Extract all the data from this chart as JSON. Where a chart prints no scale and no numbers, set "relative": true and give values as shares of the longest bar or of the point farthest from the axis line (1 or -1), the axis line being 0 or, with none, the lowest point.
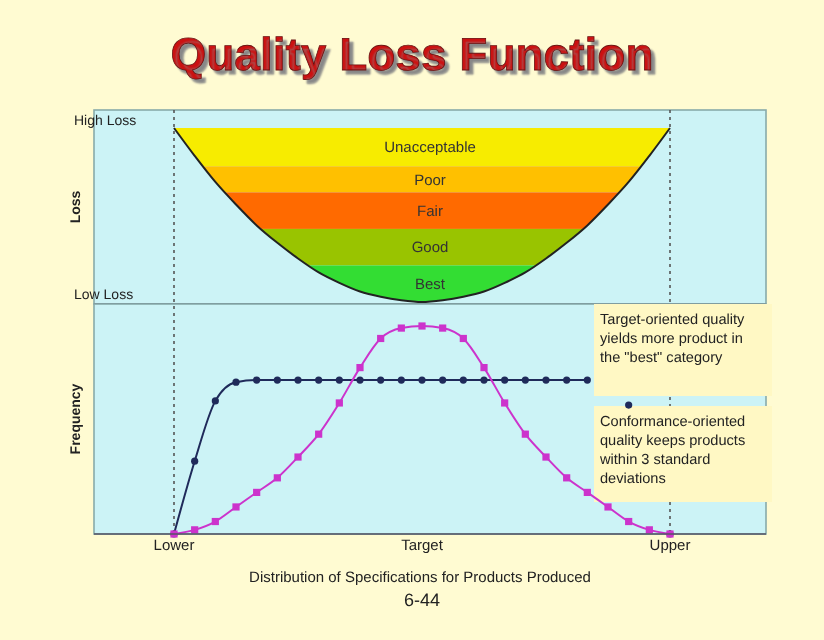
{
  "chart_data": [
    {
      "type": "line",
      "title": "Quality Loss Function",
      "ylabel": "Loss",
      "relative": true,
      "categories": [
        null,
        null,
        null,
        null,
        null,
        null,
        null,
        null,
        null,
        null,
        null,
        null,
        null,
        null,
        null,
        null,
        null,
        null,
        null,
        null,
        null,
        null,
        null,
        null,
        null
      ],
      "series": [
        {
          "color": "#222222",
          "marker": "none",
          "values": [
            1,
            0.84,
            0.69,
            0.56,
            0.44,
            0.34,
            0.25,
            0.17,
            0.11,
            0.06,
            0.03,
            0.01,
            0,
            0.01,
            0.03,
            0.06,
            0.11,
            0.17,
            0.25,
            0.34,
            0.44,
            0.56,
            0.69,
            0.84,
            1
          ]
        }
      ],
      "bands": [
        {
          "axis": "y",
          "from": 0.78,
          "to": 1,
          "label": "Unacceptable",
          "color": "#f7ec00"
        },
        {
          "axis": "y",
          "from": 0.63,
          "to": 0.78,
          "label": "Poor",
          "color": "#ffc000"
        },
        {
          "axis": "y",
          "from": 0.42,
          "to": 0.63,
          "label": "Fair",
          "color": "#ff6a00"
        },
        {
          "axis": "y",
          "from": 0.21,
          "to": 0.42,
          "label": "Good",
          "color": "#99c400"
        },
        {
          "axis": "y",
          "from": 0,
          "to": 0.21,
          "label": "Best",
          "color": "#33dd33"
        }
      ],
      "annotations": [
        "High Loss",
        "Low Loss"
      ]
    },
    {
      "type": "line",
      "ylabel": "Frequency",
      "xlabel": "Distribution of Specifications for Products Produced",
      "relative": true,
      "categories": [
        "Lower",
        null,
        null,
        null,
        null,
        null,
        null,
        null,
        null,
        null,
        null,
        null,
        "Target",
        null,
        null,
        null,
        null,
        null,
        null,
        null,
        null,
        null,
        null,
        null,
        "Upper"
      ],
      "series": [
        {
          "color": "#1f2a5a",
          "marker": "circle",
          "values": [
            0,
            0.35,
            0.64,
            0.73,
            0.74,
            0.74,
            0.74,
            0.74,
            0.74,
            0.74,
            0.74,
            0.74,
            0.74,
            0.74,
            0.74,
            0.74,
            0.74,
            0.74,
            0.74,
            0.74,
            0.74,
            null,
            0.62,
            null,
            0
          ]
        },
        {
          "color": "#cc33cc",
          "marker": "square",
          "values": [
            0,
            0.02,
            0.06,
            0.13,
            0.2,
            0.27,
            0.37,
            0.48,
            0.63,
            0.8,
            0.94,
            0.99,
            1,
            0.99,
            0.94,
            0.8,
            0.63,
            0.48,
            0.37,
            0.27,
            0.2,
            0.13,
            0.06,
            0.02,
            0
          ]
        }
      ],
      "ref_lines": [
        {
          "axis": "x",
          "value": "Lower",
          "line_style": "dotted",
          "color": "#555555"
        },
        {
          "axis": "x",
          "value": "Upper",
          "line_style": "dotted",
          "color": "#555555"
        }
      ],
      "annotations": [
        "Target-oriented quality yields more product in the \"best\" category",
        "Conformance-oriented quality keeps products within 3 standard deviations",
        "6-44"
      ]
    }
  ]
}
